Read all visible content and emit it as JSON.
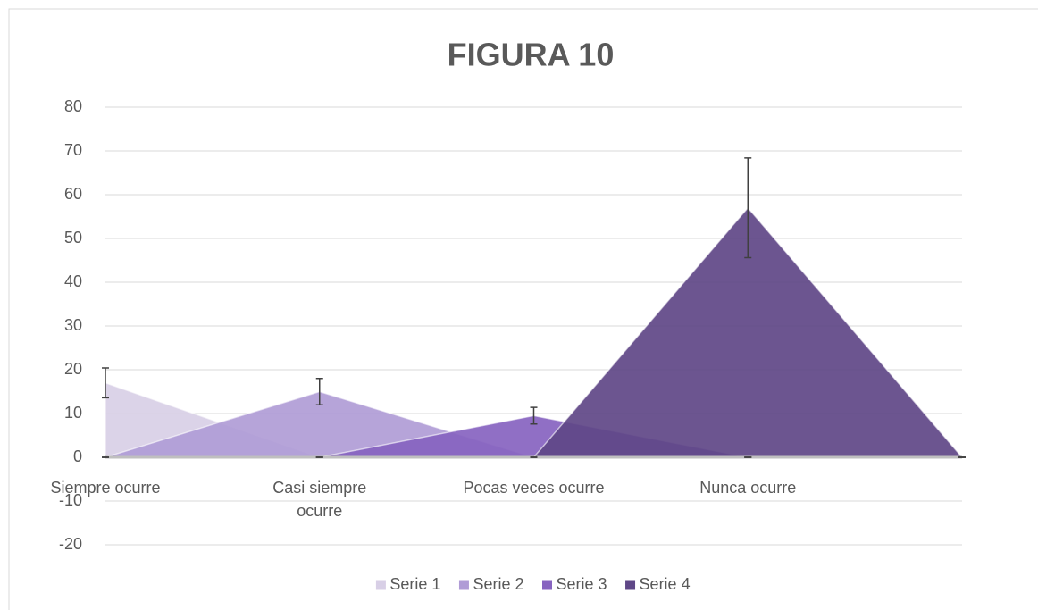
{
  "chart_data": {
    "type": "area",
    "title": "FIGURA 10",
    "categories": [
      "Siempre ocurre",
      "Casi siempre ocurre",
      "Pocas veces ocurre",
      "Nunca ocurre",
      null
    ],
    "series": [
      {
        "name": "Serie 1",
        "color": "#d8cfe6",
        "values": [
          17,
          0,
          0,
          0,
          0
        ],
        "errors": [
          3.4,
          0,
          0,
          0,
          0
        ]
      },
      {
        "name": "Serie 2",
        "color": "#b09cd6",
        "values": [
          0,
          15,
          0,
          0,
          0
        ],
        "errors": [
          0,
          3,
          0,
          0,
          0
        ]
      },
      {
        "name": "Serie 3",
        "color": "#8763c0",
        "values": [
          0,
          0,
          9.5,
          0,
          0
        ],
        "errors": [
          0,
          0,
          1.9,
          0,
          0
        ]
      },
      {
        "name": "Serie 4",
        "color": "#5f4787",
        "values": [
          0,
          0,
          0,
          57,
          0
        ],
        "errors": [
          0,
          0,
          0,
          11.4,
          0
        ]
      }
    ],
    "ylim": [
      -20,
      80
    ],
    "yticks": [
      -20,
      -10,
      0,
      10,
      20,
      30,
      40,
      50,
      60,
      70,
      80
    ],
    "grid": true,
    "legend": "bottom"
  }
}
